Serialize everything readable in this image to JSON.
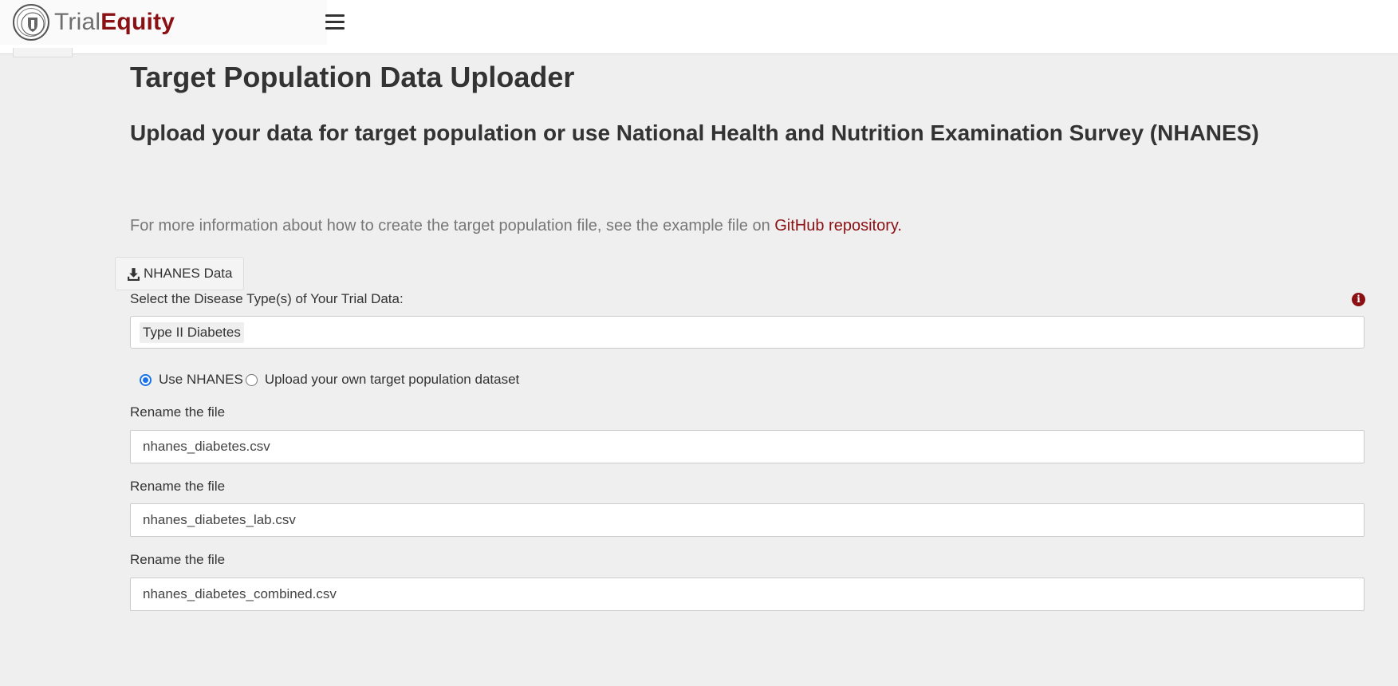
{
  "header": {
    "brand_trial": "Trial",
    "brand_equity": "Equity",
    "logo_icon": "university-seal-icon",
    "menu_icon": "hamburger-menu-icon"
  },
  "main": {
    "title": "Target Population Data Uploader",
    "subtitle": "Upload your data for target population or use National Health and Nutrition Examination Survey (NHANES)",
    "info_prefix": "For more information about how to create the target population file, see the example file on ",
    "info_link": "GitHub repository",
    "info_suffix": ".",
    "download_button": "NHANES Data",
    "download_icon": "download-icon",
    "disease_label": "Select the Disease Type(s) of Your Trial Data:",
    "disease_info_icon": "info-circle-icon",
    "selected_disease": "Type II Diabetes",
    "radio_options": [
      {
        "label": "Use NHANES",
        "checked": true
      },
      {
        "label": "Upload your own target population dataset",
        "checked": false
      }
    ],
    "fields": [
      {
        "label": "Rename the file",
        "value": "nhanes_diabetes.csv"
      },
      {
        "label": "Rename the file",
        "value": "nhanes_diabetes_lab.csv"
      },
      {
        "label": "Rename the file",
        "value": "nhanes_diabetes_combined.csv"
      }
    ]
  },
  "colors": {
    "brand": "#8b1014",
    "background": "#efefef",
    "radio_accent": "#1a73e8"
  }
}
